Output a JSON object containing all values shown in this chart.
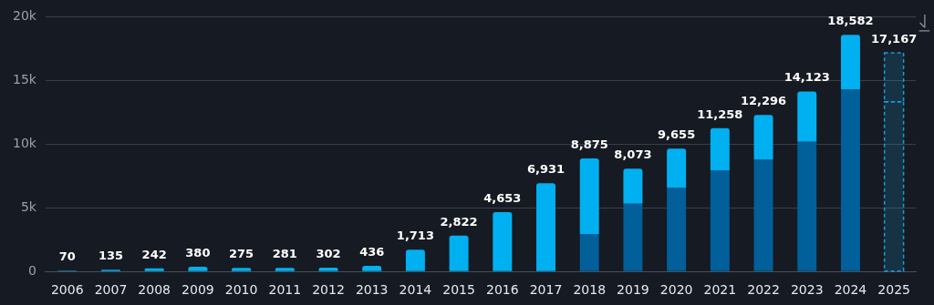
{
  "chart_data": {
    "type": "bar",
    "stacked": true,
    "categories": [
      "2006",
      "2007",
      "2008",
      "2009",
      "2010",
      "2011",
      "2012",
      "2013",
      "2014",
      "2015",
      "2016",
      "2017",
      "2018",
      "2019",
      "2020",
      "2021",
      "2022",
      "2023",
      "2024",
      "2025"
    ],
    "series": [
      {
        "color": "#015f99",
        "values": [
          null,
          null,
          null,
          null,
          null,
          null,
          null,
          null,
          null,
          null,
          null,
          null,
          2950,
          5320,
          6560,
          7910,
          8770,
          10190,
          14280,
          null
        ]
      },
      {
        "color": "#00b0f0",
        "values": [
          70,
          135,
          242,
          380,
          275,
          281,
          302,
          436,
          1713,
          2822,
          4653,
          6931,
          5925,
          2753,
          3095,
          3348,
          3526,
          3933,
          4302,
          null
        ]
      },
      {
        "color": "#1a9bd7",
        "line_style": "dashed",
        "values": [
          null,
          null,
          null,
          null,
          null,
          null,
          null,
          null,
          null,
          null,
          null,
          null,
          null,
          null,
          null,
          null,
          null,
          null,
          null,
          13330
        ]
      },
      {
        "color": "#1a9bd7",
        "line_style": "dashed",
        "values": [
          null,
          null,
          null,
          null,
          null,
          null,
          null,
          null,
          null,
          null,
          null,
          null,
          null,
          null,
          null,
          null,
          null,
          null,
          null,
          3837
        ]
      }
    ],
    "totals": [
      "70",
      "135",
      "242",
      "380",
      "275",
      "281",
      "302",
      "436",
      "1,713",
      "2,822",
      "4,653",
      "6,931",
      "8,875",
      "8,073",
      "9,655",
      "11,258",
      "12,296",
      "14,123",
      "18,582",
      "17,167"
    ],
    "ylim": [
      0,
      20000
    ],
    "yticks": [
      {
        "value": 0,
        "label": "0"
      },
      {
        "value": 5000,
        "label": "5k"
      },
      {
        "value": 10000,
        "label": "10k"
      },
      {
        "value": 15000,
        "label": "15k"
      },
      {
        "value": 20000,
        "label": "20k"
      }
    ],
    "grid": "y",
    "legend": false
  }
}
